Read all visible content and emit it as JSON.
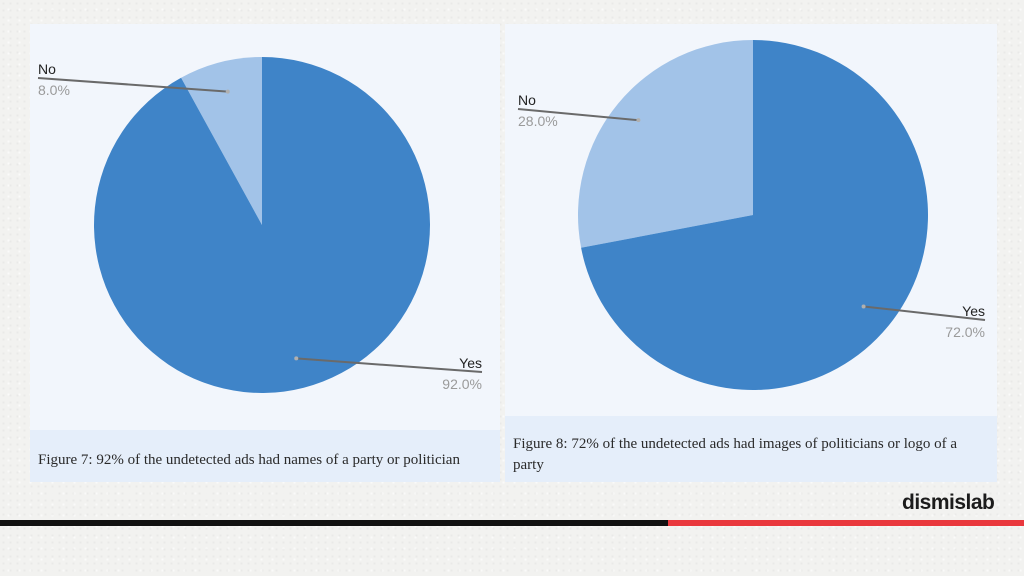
{
  "colors": {
    "yes": "#3f84c8",
    "no": "#a2c3e8",
    "leader": "#6a6a6a"
  },
  "chart_data": [
    {
      "type": "pie",
      "slices": [
        {
          "label": "No",
          "value": 8.0,
          "value_label": "8.0%"
        },
        {
          "label": "Yes",
          "value": 92.0,
          "value_label": "92.0%"
        }
      ],
      "caption": "Figure 7: 92% of the undetected ads had names of a party or politician"
    },
    {
      "type": "pie",
      "slices": [
        {
          "label": "No",
          "value": 28.0,
          "value_label": "28.0%"
        },
        {
          "label": "Yes",
          "value": 72.0,
          "value_label": "72.0%"
        }
      ],
      "caption": "Figure 8: 72% of the undetected ads had images of politicians or logo of a party"
    }
  ],
  "brand": {
    "logo_text": "dismislab"
  }
}
